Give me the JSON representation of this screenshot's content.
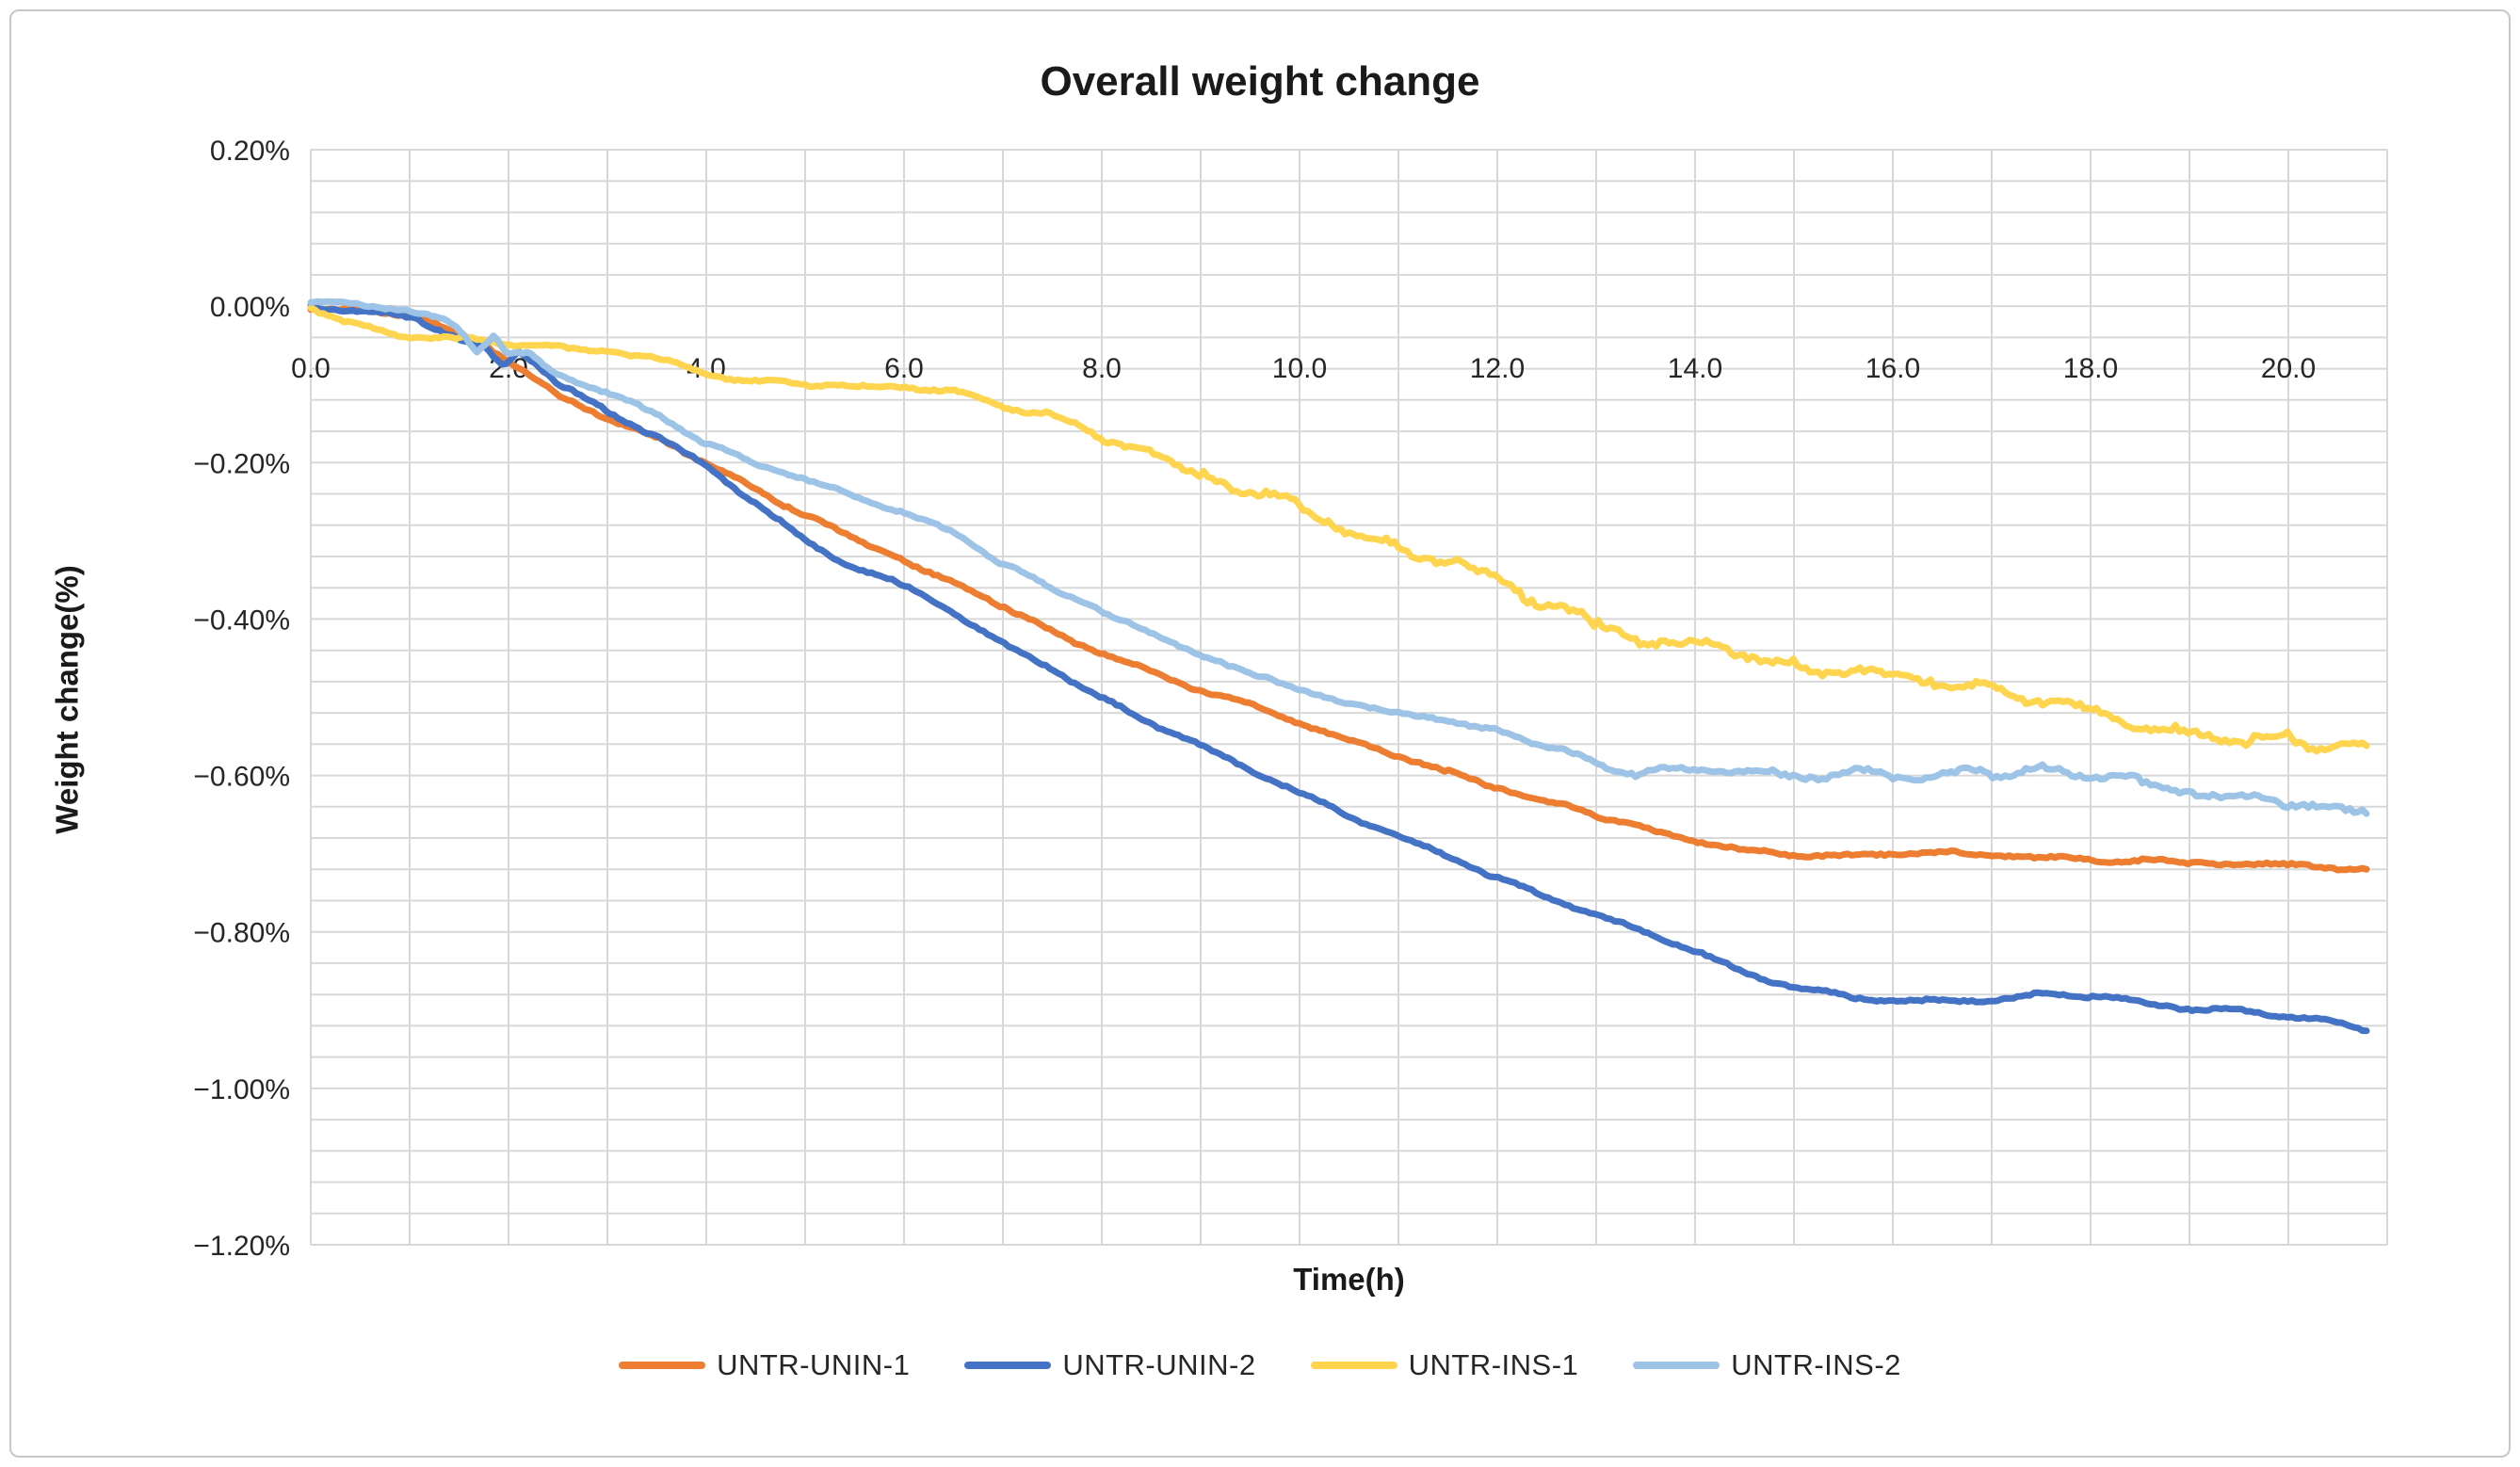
{
  "title": "Overall weight change",
  "chart_data": {
    "type": "line",
    "title": "Overall weight change",
    "xlabel": "Time(h)",
    "ylabel": "Weight change(%)",
    "xlim": [
      0,
      21
    ],
    "ylim": [
      -1.2,
      0.2
    ],
    "x_gridline_step": 1.0,
    "x_label_step": 2.0,
    "y_major_step": 0.2,
    "y_minor_step": 0.04,
    "grid": "on (light gray; minor horizontal every 0.04%, vertical every 1h)",
    "legend_position": "bottom-center",
    "x_tick_labels": [
      "0.0",
      "2.0",
      "4.0",
      "6.0",
      "8.0",
      "10.0",
      "12.0",
      "14.0",
      "16.0",
      "18.0",
      "20.0"
    ],
    "y_tick_labels": [
      "0.20%",
      "0.00%",
      "−0.20%",
      "−0.40%",
      "−0.60%",
      "−0.80%",
      "−1.00%",
      "−1.20%"
    ],
    "y_tick_values": [
      0.2,
      0.0,
      -0.2,
      -0.4,
      -0.6,
      -0.8,
      -1.0,
      -1.2
    ],
    "gridline_color": "#d8d8d8",
    "series": [
      {
        "name": "UNTR-UNIN-1",
        "color": "#ED7D31",
        "units": "x=hours, y=percent weight change",
        "points": [
          [
            0,
            0
          ],
          [
            0.3,
            -0.003
          ],
          [
            0.6,
            -0.007
          ],
          [
            1,
            -0.012
          ],
          [
            1.3,
            -0.025
          ],
          [
            1.6,
            -0.04
          ],
          [
            1.8,
            -0.052
          ],
          [
            2,
            -0.072
          ],
          [
            2.5,
            -0.113
          ],
          [
            3,
            -0.144
          ],
          [
            3.5,
            -0.17
          ],
          [
            4,
            -0.2
          ],
          [
            4.5,
            -0.235
          ],
          [
            5,
            -0.268
          ],
          [
            5.5,
            -0.297
          ],
          [
            6,
            -0.325
          ],
          [
            6.5,
            -0.355
          ],
          [
            7,
            -0.385
          ],
          [
            7.5,
            -0.415
          ],
          [
            8,
            -0.445
          ],
          [
            8.5,
            -0.468
          ],
          [
            9,
            -0.49
          ],
          [
            9.5,
            -0.51
          ],
          [
            10,
            -0.532
          ],
          [
            10.5,
            -0.555
          ],
          [
            11,
            -0.575
          ],
          [
            11.5,
            -0.596
          ],
          [
            12,
            -0.615
          ],
          [
            12.5,
            -0.634
          ],
          [
            13,
            -0.651
          ],
          [
            13.5,
            -0.668
          ],
          [
            14,
            -0.684
          ],
          [
            14.5,
            -0.695
          ],
          [
            15,
            -0.701
          ],
          [
            15.5,
            -0.704
          ],
          [
            16,
            -0.7
          ],
          [
            16.5,
            -0.699
          ],
          [
            17,
            -0.702
          ],
          [
            17.5,
            -0.705
          ],
          [
            18,
            -0.707
          ],
          [
            18.5,
            -0.71
          ],
          [
            19,
            -0.711
          ],
          [
            19.5,
            -0.712
          ],
          [
            20,
            -0.714
          ],
          [
            20.4,
            -0.716
          ],
          [
            20.8,
            -0.72
          ]
        ]
      },
      {
        "name": "UNTR-UNIN-2",
        "color": "#4472C4",
        "units": "x=hours, y=percent weight change",
        "points": [
          [
            0,
            0
          ],
          [
            0.3,
            -0.005
          ],
          [
            0.6,
            -0.008
          ],
          [
            1,
            -0.015
          ],
          [
            1.3,
            -0.03
          ],
          [
            1.5,
            -0.04
          ],
          [
            1.75,
            -0.05
          ],
          [
            1.95,
            -0.08
          ],
          [
            2.1,
            -0.058
          ],
          [
            2.3,
            -0.075
          ],
          [
            2.5,
            -0.098
          ],
          [
            3,
            -0.137
          ],
          [
            3.5,
            -0.165
          ],
          [
            4,
            -0.204
          ],
          [
            4.5,
            -0.252
          ],
          [
            5,
            -0.3
          ],
          [
            5.5,
            -0.335
          ],
          [
            6,
            -0.358
          ],
          [
            6.5,
            -0.392
          ],
          [
            7,
            -0.43
          ],
          [
            7.5,
            -0.465
          ],
          [
            8,
            -0.5
          ],
          [
            8.5,
            -0.532
          ],
          [
            9,
            -0.562
          ],
          [
            9.5,
            -0.592
          ],
          [
            10,
            -0.622
          ],
          [
            10.5,
            -0.65
          ],
          [
            11,
            -0.677
          ],
          [
            11.5,
            -0.705
          ],
          [
            12,
            -0.73
          ],
          [
            12.5,
            -0.755
          ],
          [
            13,
            -0.777
          ],
          [
            13.5,
            -0.8
          ],
          [
            14,
            -0.825
          ],
          [
            14.5,
            -0.852
          ],
          [
            15,
            -0.872
          ],
          [
            15.5,
            -0.882
          ],
          [
            16,
            -0.886
          ],
          [
            16.5,
            -0.89
          ],
          [
            17,
            -0.886
          ],
          [
            17.5,
            -0.88
          ],
          [
            18,
            -0.884
          ],
          [
            18.5,
            -0.89
          ],
          [
            19,
            -0.898
          ],
          [
            19.5,
            -0.9
          ],
          [
            20,
            -0.909
          ],
          [
            20.4,
            -0.915
          ],
          [
            20.8,
            -0.926
          ]
        ]
      },
      {
        "name": "UNTR-INS-1",
        "color": "#FFD54F",
        "units": "x=hours, y=percent weight change",
        "points": [
          [
            0,
            0
          ],
          [
            0.2,
            -0.012
          ],
          [
            0.4,
            -0.022
          ],
          [
            0.7,
            -0.032
          ],
          [
            1,
            -0.038
          ],
          [
            1.5,
            -0.042
          ],
          [
            2,
            -0.047
          ],
          [
            2.5,
            -0.054
          ],
          [
            3,
            -0.056
          ],
          [
            3.5,
            -0.067
          ],
          [
            4,
            -0.086
          ],
          [
            4.5,
            -0.096
          ],
          [
            5,
            -0.101
          ],
          [
            5.5,
            -0.105
          ],
          [
            6,
            -0.101
          ],
          [
            6.5,
            -0.108
          ],
          [
            7,
            -0.128
          ],
          [
            7.5,
            -0.142
          ],
          [
            8,
            -0.168
          ],
          [
            8.5,
            -0.19
          ],
          [
            9,
            -0.213
          ],
          [
            9.5,
            -0.235
          ],
          [
            10,
            -0.258
          ],
          [
            10.5,
            -0.283
          ],
          [
            11,
            -0.305
          ],
          [
            11.5,
            -0.325
          ],
          [
            12,
            -0.35
          ],
          [
            12.5,
            -0.382
          ],
          [
            13,
            -0.408
          ],
          [
            13.5,
            -0.422
          ],
          [
            14,
            -0.432
          ],
          [
            14.5,
            -0.445
          ],
          [
            15,
            -0.459
          ],
          [
            15.5,
            -0.466
          ],
          [
            16,
            -0.471
          ],
          [
            16.5,
            -0.481
          ],
          [
            17,
            -0.491
          ],
          [
            17.5,
            -0.503
          ],
          [
            18,
            -0.52
          ],
          [
            18.5,
            -0.534
          ],
          [
            19,
            -0.546
          ],
          [
            19.3,
            -0.556
          ],
          [
            19.6,
            -0.548
          ],
          [
            20,
            -0.551
          ],
          [
            20.3,
            -0.56
          ],
          [
            20.5,
            -0.553
          ],
          [
            20.8,
            -0.565
          ]
        ]
      },
      {
        "name": "UNTR-INS-2",
        "color": "#9DC3E6",
        "units": "x=hours, y=percent weight change",
        "points": [
          [
            0,
            0.005
          ],
          [
            0.4,
            0.004
          ],
          [
            0.8,
            -0.002
          ],
          [
            1,
            -0.006
          ],
          [
            1.3,
            -0.016
          ],
          [
            1.5,
            -0.03
          ],
          [
            1.68,
            -0.057
          ],
          [
            1.85,
            -0.036
          ],
          [
            2,
            -0.062
          ],
          [
            2.2,
            -0.06
          ],
          [
            2.5,
            -0.087
          ],
          [
            3,
            -0.113
          ],
          [
            3.5,
            -0.137
          ],
          [
            4,
            -0.175
          ],
          [
            4.5,
            -0.2
          ],
          [
            5,
            -0.221
          ],
          [
            5.5,
            -0.242
          ],
          [
            6,
            -0.265
          ],
          [
            6.5,
            -0.291
          ],
          [
            7,
            -0.33
          ],
          [
            7.5,
            -0.36
          ],
          [
            8,
            -0.39
          ],
          [
            8.5,
            -0.42
          ],
          [
            9,
            -0.445
          ],
          [
            9.5,
            -0.47
          ],
          [
            10,
            -0.49
          ],
          [
            10.5,
            -0.51
          ],
          [
            11,
            -0.521
          ],
          [
            11.5,
            -0.53
          ],
          [
            12,
            -0.541
          ],
          [
            12.5,
            -0.565
          ],
          [
            13,
            -0.581
          ],
          [
            13.4,
            -0.603
          ],
          [
            13.8,
            -0.59
          ],
          [
            14.2,
            -0.595
          ],
          [
            14.6,
            -0.6
          ],
          [
            15,
            -0.601
          ],
          [
            15.5,
            -0.594
          ],
          [
            16,
            -0.6
          ],
          [
            16.5,
            -0.595
          ],
          [
            17,
            -0.601
          ],
          [
            17.5,
            -0.594
          ],
          [
            18,
            -0.601
          ],
          [
            18.5,
            -0.61
          ],
          [
            19,
            -0.617
          ],
          [
            19.5,
            -0.63
          ],
          [
            20,
            -0.636
          ],
          [
            20.4,
            -0.641
          ],
          [
            20.8,
            -0.651
          ]
        ]
      }
    ]
  }
}
